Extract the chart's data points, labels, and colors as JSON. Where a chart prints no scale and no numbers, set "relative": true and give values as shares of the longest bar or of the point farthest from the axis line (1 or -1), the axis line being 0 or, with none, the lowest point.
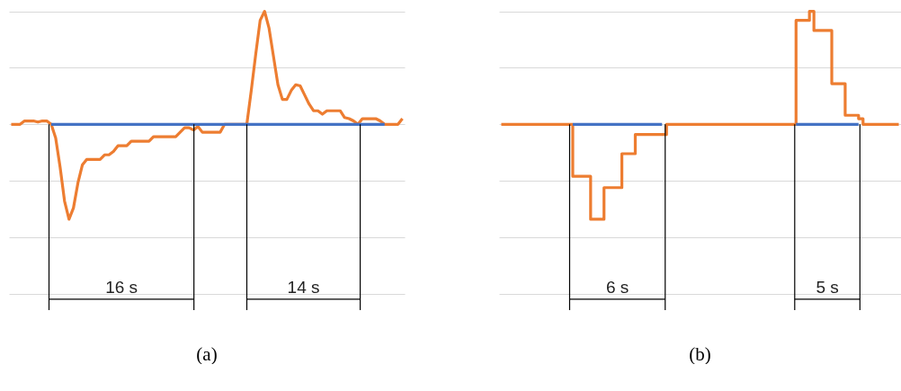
{
  "chart_data": [
    {
      "type": "line",
      "title": "(a)",
      "relative": true,
      "grid": "y",
      "marker": "none",
      "annotations": [
        "16 s",
        "14 s"
      ],
      "categories": [
        null,
        null,
        null,
        null,
        null,
        null,
        null,
        null,
        null,
        null,
        null,
        null,
        null,
        null,
        null,
        null,
        null,
        null,
        null,
        null,
        null,
        null,
        null,
        null,
        null,
        null,
        null,
        null,
        null,
        null,
        null,
        null,
        null,
        null,
        null,
        null,
        null,
        null,
        null,
        null,
        null,
        null,
        null,
        null,
        null,
        null,
        null,
        null,
        null,
        null,
        null,
        null,
        null,
        null,
        null,
        null,
        null,
        null,
        null,
        null,
        null,
        null,
        null,
        null,
        null,
        null,
        null,
        null,
        null,
        null,
        null,
        null,
        null,
        null,
        null,
        null,
        null,
        null,
        null,
        null,
        null,
        null,
        null,
        null,
        null,
        null,
        null,
        null,
        null
      ],
      "series": [
        {
          "color": "#ed7d31",
          "values": [
            0,
            0,
            0,
            0.03,
            0.03,
            0.03,
            0.02,
            0.03,
            0.03,
            0,
            -0.12,
            -0.38,
            -0.68,
            -0.84,
            -0.74,
            -0.52,
            -0.36,
            -0.31,
            -0.31,
            -0.31,
            -0.31,
            -0.27,
            -0.27,
            -0.24,
            -0.19,
            -0.19,
            -0.19,
            -0.15,
            -0.15,
            -0.15,
            -0.15,
            -0.15,
            -0.11,
            -0.11,
            -0.11,
            -0.11,
            -0.11,
            -0.11,
            -0.07,
            -0.03,
            -0.03,
            -0.05,
            -0.02,
            -0.07,
            -0.07,
            -0.07,
            -0.07,
            -0.07,
            0,
            0,
            0,
            0,
            0,
            0,
            0.3,
            0.62,
            0.92,
            1,
            0.85,
            0.6,
            0.35,
            0.22,
            0.22,
            0.3,
            0.35,
            0.34,
            0.26,
            0.18,
            0.12,
            0.12,
            0.09,
            0.12,
            0.12,
            0.12,
            0.12,
            0.06,
            0.05,
            0.03,
            0,
            0.05,
            0.05,
            0.05,
            0.05,
            0.03,
            0,
            0,
            0,
            0,
            0.05
          ]
        },
        {
          "color": "#4472c4",
          "values": [
            null,
            null,
            null,
            null,
            null,
            null,
            null,
            null,
            null,
            0,
            0,
            0,
            0,
            0,
            0,
            0,
            0,
            0,
            0,
            0,
            0,
            0,
            0,
            0,
            0,
            0,
            0,
            0,
            0,
            0,
            0,
            0,
            0,
            0,
            0,
            0,
            0,
            0,
            0,
            0,
            0,
            0,
            0,
            0,
            0,
            0,
            0,
            0,
            0,
            0,
            0,
            0,
            0,
            0,
            0,
            0,
            0,
            0,
            0,
            0,
            0,
            0,
            0,
            0,
            0,
            0,
            0,
            0,
            0,
            0,
            0,
            0,
            0,
            0,
            0,
            0,
            0,
            0,
            0,
            0,
            0,
            0,
            0,
            0,
            0,
            null,
            null,
            null,
            null
          ]
        }
      ]
    },
    {
      "type": "step",
      "title": "(b)",
      "relative": true,
      "grid": "y",
      "marker": "none",
      "annotations": [
        "6 s",
        "5 s"
      ],
      "categories": [
        null,
        null,
        null,
        null,
        null,
        null,
        null,
        null,
        null,
        null,
        null,
        null,
        null,
        null,
        null,
        null,
        null,
        null,
        null,
        null,
        null,
        null,
        null,
        null,
        null,
        null,
        null,
        null,
        null,
        null,
        null,
        null,
        null,
        null,
        null,
        null,
        null,
        null,
        null,
        null,
        null,
        null,
        null,
        null,
        null,
        null,
        null,
        null,
        null,
        null,
        null,
        null,
        null,
        null,
        null,
        null,
        null,
        null,
        null,
        null,
        null,
        null,
        null,
        null,
        null,
        null,
        null,
        null,
        null,
        null,
        null,
        null,
        null,
        null,
        null,
        null,
        null,
        null,
        null,
        null,
        null,
        null,
        null,
        null,
        null,
        null,
        null,
        null,
        null,
        null
      ],
      "series": [
        {
          "color": "#ed7d31",
          "values": [
            0,
            0,
            0,
            0,
            0,
            0,
            0,
            0,
            0,
            0,
            0,
            0,
            0,
            0,
            0,
            0,
            -0.46,
            -0.46,
            -0.46,
            -0.46,
            -0.84,
            -0.84,
            -0.84,
            -0.56,
            -0.56,
            -0.56,
            -0.56,
            -0.26,
            -0.26,
            -0.26,
            -0.09,
            -0.09,
            -0.09,
            -0.09,
            -0.09,
            -0.09,
            -0.09,
            0,
            0,
            0,
            0,
            0,
            0,
            0,
            0,
            0,
            0,
            0,
            0,
            0,
            0,
            0,
            0,
            0,
            0,
            0,
            0,
            0,
            0,
            0,
            0,
            0,
            0,
            0,
            0,
            0,
            0.92,
            0.92,
            0.92,
            1,
            0.83,
            0.83,
            0.83,
            0.83,
            0.36,
            0.36,
            0.36,
            0.08,
            0.08,
            0.08,
            0.05,
            0,
            0,
            0,
            0,
            0,
            0,
            0,
            0,
            0
          ]
        },
        {
          "color": "#4472c4",
          "values": [
            null,
            null,
            null,
            null,
            null,
            null,
            null,
            null,
            null,
            null,
            null,
            null,
            null,
            null,
            null,
            null,
            0,
            0,
            0,
            0,
            0,
            0,
            0,
            0,
            0,
            0,
            0,
            0,
            0,
            0,
            0,
            0,
            0,
            0,
            0,
            0,
            0,
            null,
            null,
            null,
            null,
            null,
            null,
            null,
            null,
            null,
            null,
            null,
            null,
            null,
            null,
            null,
            null,
            null,
            null,
            null,
            null,
            null,
            null,
            null,
            null,
            null,
            null,
            null,
            null,
            null,
            0,
            0,
            0,
            0,
            0,
            0,
            0,
            0,
            0,
            0,
            0,
            0,
            0,
            0,
            0,
            null,
            null,
            null,
            null,
            null,
            null,
            null,
            null,
            null
          ]
        }
      ]
    }
  ]
}
